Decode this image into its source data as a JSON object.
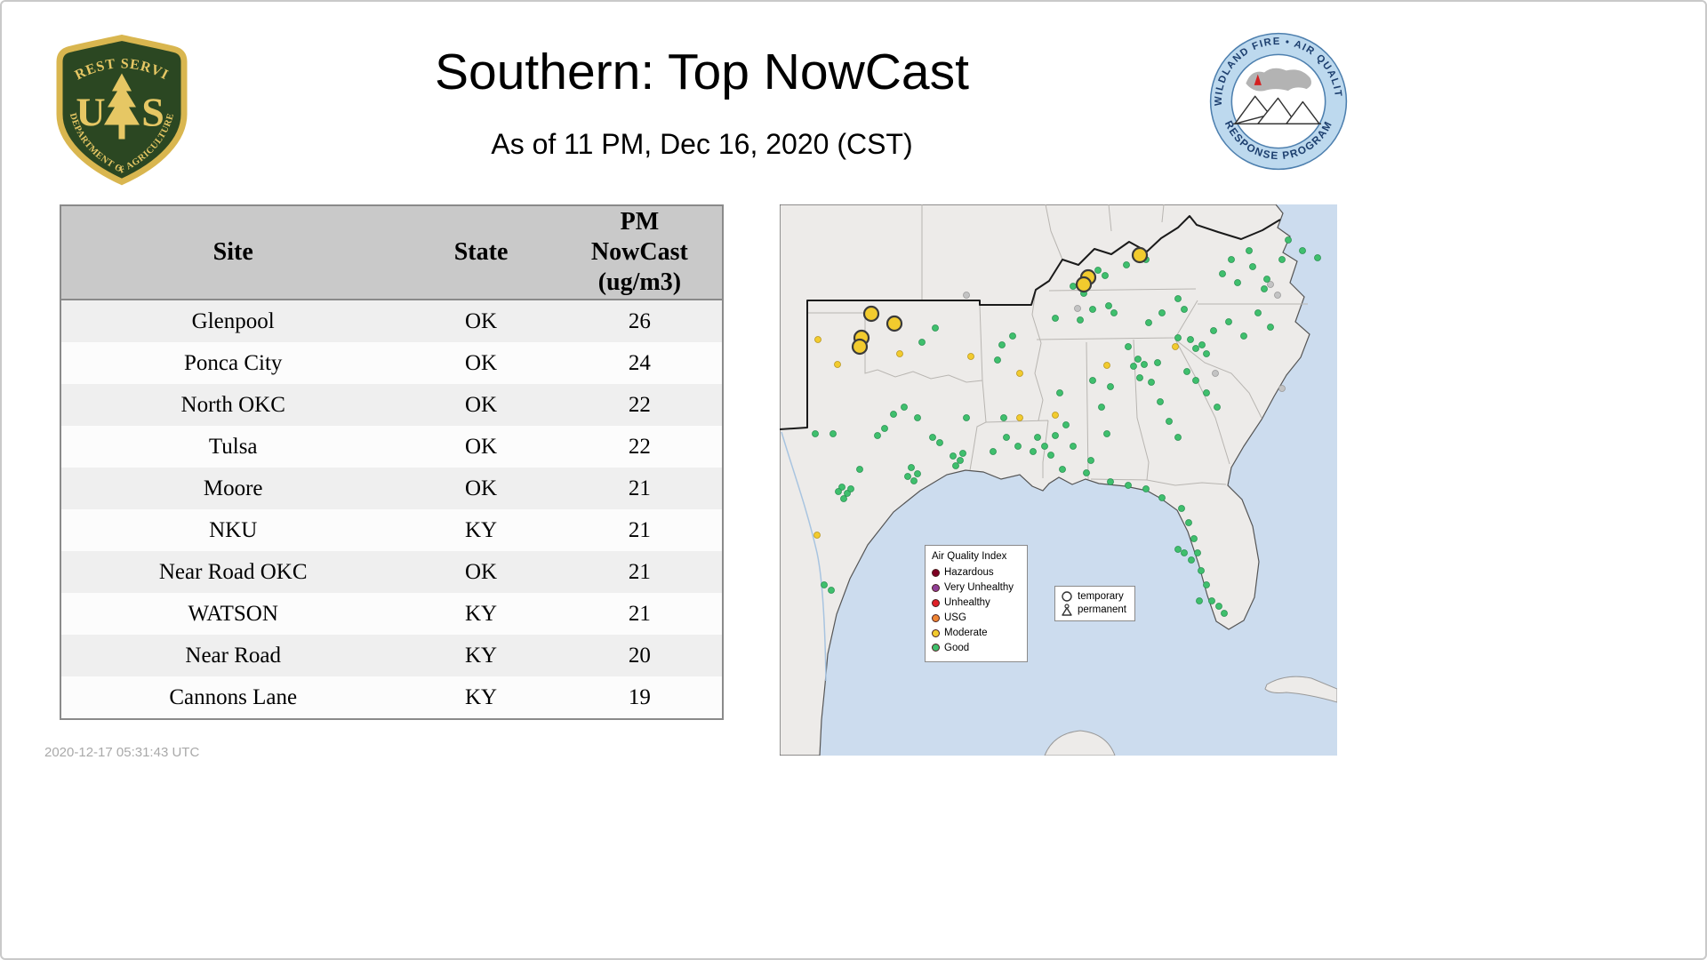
{
  "header": {
    "title": "Southern: Top NowCast",
    "subtitle": "As of 11 PM, Dec 16, 2020 (CST)"
  },
  "logos": {
    "forest_service": {
      "top_text": "FOREST SERVICE",
      "letter_left": "U",
      "letter_right": "S",
      "bottom_text": "DEPARTMENT OF AGRICULTURE"
    },
    "wildland_fire": {
      "top_text": "WILDLAND FIRE • AIR QUALITY",
      "bottom_text": "RESPONSE PROGRAM"
    }
  },
  "table": {
    "columns": [
      "Site",
      "State",
      "PM\nNowCast\n(ug/m3)"
    ],
    "rows": [
      [
        "Glenpool",
        "OK",
        "26"
      ],
      [
        "Ponca City",
        "OK",
        "24"
      ],
      [
        "North OKC",
        "OK",
        "22"
      ],
      [
        "Tulsa",
        "OK",
        "22"
      ],
      [
        "Moore",
        "OK",
        "21"
      ],
      [
        "NKU",
        "KY",
        "21"
      ],
      [
        "Near Road OKC",
        "OK",
        "21"
      ],
      [
        "WATSON",
        "KY",
        "21"
      ],
      [
        "Near Road",
        "KY",
        "20"
      ],
      [
        "Cannons Lane",
        "KY",
        "19"
      ]
    ]
  },
  "map": {
    "legend": {
      "title": "Air Quality Index",
      "items": [
        {
          "label": "Hazardous",
          "color": "#7e0023"
        },
        {
          "label": "Very Unhealthy",
          "color": "#8f3f97"
        },
        {
          "label": "Unhealthy",
          "color": "#e02028"
        },
        {
          "label": "USG",
          "color": "#ef8533"
        },
        {
          "label": "Moderate",
          "color": "#f2cb2e"
        },
        {
          "label": "Good",
          "color": "#3fbf6d"
        }
      ]
    },
    "marker_legend": {
      "temporary": "temporary",
      "permanent": "permanent"
    },
    "markers": {
      "large_moderate": [
        [
          103,
          123
        ],
        [
          129,
          134
        ],
        [
          92,
          150
        ],
        [
          90,
          160
        ],
        [
          405,
          57
        ],
        [
          347,
          82
        ],
        [
          342,
          90
        ]
      ],
      "moderate": [
        [
          65,
          180
        ],
        [
          135,
          168
        ],
        [
          215,
          171
        ],
        [
          270,
          190
        ],
        [
          368,
          181
        ],
        [
          310,
          237
        ],
        [
          270,
          240
        ],
        [
          42,
          372
        ],
        [
          445,
          160
        ],
        [
          43,
          152
        ]
      ],
      "no_data": [
        [
          335,
          117
        ],
        [
          552,
          90
        ],
        [
          560,
          102
        ],
        [
          490,
          190
        ],
        [
          565,
          207
        ],
        [
          210,
          102
        ]
      ],
      "good": [
        [
          70,
          318
        ],
        [
          76,
          325
        ],
        [
          72,
          331
        ],
        [
          80,
          320
        ],
        [
          66,
          323
        ],
        [
          148,
          296
        ],
        [
          155,
          303
        ],
        [
          144,
          306
        ],
        [
          151,
          311
        ],
        [
          195,
          283
        ],
        [
          203,
          288
        ],
        [
          198,
          294
        ],
        [
          206,
          280
        ],
        [
          90,
          298
        ],
        [
          110,
          260
        ],
        [
          118,
          252
        ],
        [
          60,
          258
        ],
        [
          172,
          262
        ],
        [
          180,
          268
        ],
        [
          128,
          236
        ],
        [
          140,
          228
        ],
        [
          210,
          240
        ],
        [
          50,
          428
        ],
        [
          58,
          434
        ],
        [
          40,
          258
        ],
        [
          155,
          240
        ],
        [
          175,
          139
        ],
        [
          160,
          155
        ],
        [
          250,
          158
        ],
        [
          262,
          148
        ],
        [
          245,
          175
        ],
        [
          255,
          262
        ],
        [
          268,
          272
        ],
        [
          285,
          278
        ],
        [
          298,
          272
        ],
        [
          305,
          282
        ],
        [
          240,
          278
        ],
        [
          252,
          240
        ],
        [
          290,
          262
        ],
        [
          315,
          212
        ],
        [
          322,
          248
        ],
        [
          330,
          272
        ],
        [
          318,
          298
        ],
        [
          310,
          260
        ],
        [
          352,
          198
        ],
        [
          362,
          228
        ],
        [
          368,
          258
        ],
        [
          350,
          288
        ],
        [
          345,
          302
        ],
        [
          372,
          205
        ],
        [
          352,
          118
        ],
        [
          370,
          114
        ],
        [
          376,
          122
        ],
        [
          415,
          133
        ],
        [
          448,
          106
        ],
        [
          455,
          118
        ],
        [
          430,
          122
        ],
        [
          310,
          128
        ],
        [
          338,
          130
        ],
        [
          330,
          92
        ],
        [
          358,
          74
        ],
        [
          366,
          80
        ],
        [
          390,
          68
        ],
        [
          412,
          62
        ],
        [
          342,
          100
        ],
        [
          403,
          174
        ],
        [
          410,
          180
        ],
        [
          398,
          182
        ],
        [
          418,
          200
        ],
        [
          428,
          222
        ],
        [
          438,
          244
        ],
        [
          448,
          262
        ],
        [
          392,
          160
        ],
        [
          425,
          178
        ],
        [
          405,
          195
        ],
        [
          392,
          316
        ],
        [
          412,
          320
        ],
        [
          430,
          330
        ],
        [
          372,
          312
        ],
        [
          452,
          342
        ],
        [
          460,
          358
        ],
        [
          466,
          376
        ],
        [
          470,
          392
        ],
        [
          463,
          400
        ],
        [
          474,
          412
        ],
        [
          480,
          428
        ],
        [
          472,
          446
        ],
        [
          486,
          446
        ],
        [
          494,
          452
        ],
        [
          500,
          460
        ],
        [
          455,
          392
        ],
        [
          448,
          388
        ],
        [
          468,
          198
        ],
        [
          480,
          212
        ],
        [
          458,
          188
        ],
        [
          492,
          228
        ],
        [
          462,
          152
        ],
        [
          475,
          158
        ],
        [
          468,
          162
        ],
        [
          488,
          142
        ],
        [
          505,
          132
        ],
        [
          522,
          148
        ],
        [
          538,
          122
        ],
        [
          552,
          138
        ],
        [
          448,
          150
        ],
        [
          480,
          168
        ],
        [
          498,
          78
        ],
        [
          515,
          88
        ],
        [
          532,
          70
        ],
        [
          548,
          84
        ],
        [
          565,
          62
        ],
        [
          528,
          52
        ],
        [
          508,
          62
        ],
        [
          545,
          95
        ],
        [
          572,
          40
        ],
        [
          588,
          52
        ],
        [
          605,
          60
        ]
      ]
    }
  },
  "footer": {
    "timestamp": "2020-12-17 05:31:43 UTC"
  }
}
